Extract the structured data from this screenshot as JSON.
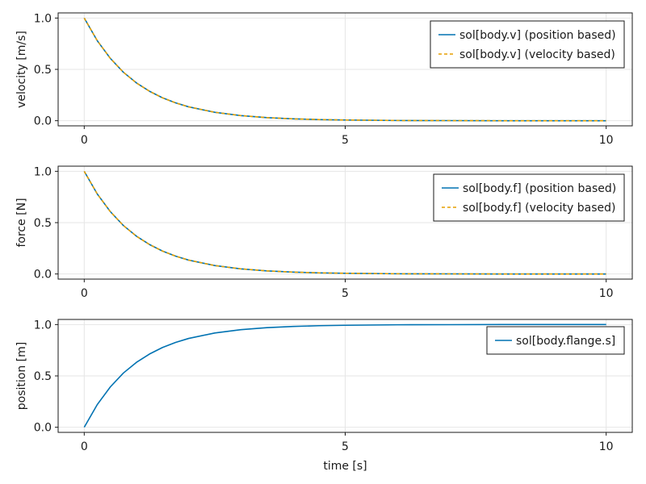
{
  "chart_data": [
    {
      "type": "line",
      "ylabel": "velocity [m/s]",
      "xlabel": "",
      "xlim": [
        -0.5,
        10.5
      ],
      "ylim": [
        -0.05,
        1.05
      ],
      "xticks": [
        "0",
        "5",
        "10"
      ],
      "yticks": [
        "0.0",
        "0.5",
        "1.0"
      ],
      "grid": true,
      "legend_position": "top-right",
      "series": [
        {
          "name": "sol[body.v] (position based)",
          "color": "#0072b2",
          "style": "solid",
          "x": [
            0,
            0.25,
            0.5,
            0.75,
            1,
            1.25,
            1.5,
            1.75,
            2,
            2.5,
            3,
            3.5,
            4,
            4.5,
            5,
            6,
            7,
            8,
            9,
            10
          ],
          "y": [
            1.0,
            0.779,
            0.607,
            0.472,
            0.368,
            0.287,
            0.223,
            0.174,
            0.135,
            0.082,
            0.05,
            0.03,
            0.018,
            0.011,
            0.007,
            0.002,
            0.001,
            0.0,
            0.0,
            0.0
          ]
        },
        {
          "name": "sol[body.v] (velocity based)",
          "color": "#e69f00",
          "style": "dashed",
          "x": [
            0,
            0.25,
            0.5,
            0.75,
            1,
            1.25,
            1.5,
            1.75,
            2,
            2.5,
            3,
            3.5,
            4,
            4.5,
            5,
            6,
            7,
            8,
            9,
            10
          ],
          "y": [
            1.0,
            0.779,
            0.607,
            0.472,
            0.368,
            0.287,
            0.223,
            0.174,
            0.135,
            0.082,
            0.05,
            0.03,
            0.018,
            0.011,
            0.007,
            0.002,
            0.001,
            0.0,
            0.0,
            0.0
          ]
        }
      ]
    },
    {
      "type": "line",
      "ylabel": "force [N]",
      "xlabel": "",
      "xlim": [
        -0.5,
        10.5
      ],
      "ylim": [
        -0.05,
        1.05
      ],
      "xticks": [
        "0",
        "5",
        "10"
      ],
      "yticks": [
        "0.0",
        "0.5",
        "1.0"
      ],
      "grid": true,
      "legend_position": "top-right",
      "series": [
        {
          "name": "sol[body.f] (position based)",
          "color": "#0072b2",
          "style": "solid",
          "x": [
            0,
            0.25,
            0.5,
            0.75,
            1,
            1.25,
            1.5,
            1.75,
            2,
            2.5,
            3,
            3.5,
            4,
            4.5,
            5,
            6,
            7,
            8,
            9,
            10
          ],
          "y": [
            1.0,
            0.779,
            0.607,
            0.472,
            0.368,
            0.287,
            0.223,
            0.174,
            0.135,
            0.082,
            0.05,
            0.03,
            0.018,
            0.011,
            0.007,
            0.002,
            0.001,
            0.0,
            0.0,
            0.0
          ]
        },
        {
          "name": "sol[body.f] (velocity based)",
          "color": "#e69f00",
          "style": "dashed",
          "x": [
            0,
            0.25,
            0.5,
            0.75,
            1,
            1.25,
            1.5,
            1.75,
            2,
            2.5,
            3,
            3.5,
            4,
            4.5,
            5,
            6,
            7,
            8,
            9,
            10
          ],
          "y": [
            1.0,
            0.779,
            0.607,
            0.472,
            0.368,
            0.287,
            0.223,
            0.174,
            0.135,
            0.082,
            0.05,
            0.03,
            0.018,
            0.011,
            0.007,
            0.002,
            0.001,
            0.0,
            0.0,
            0.0
          ]
        }
      ]
    },
    {
      "type": "line",
      "ylabel": "position [m]",
      "xlabel": "time [s]",
      "xlim": [
        -0.5,
        10.5
      ],
      "ylim": [
        -0.05,
        1.05
      ],
      "xticks": [
        "0",
        "5",
        "10"
      ],
      "yticks": [
        "0.0",
        "0.5",
        "1.0"
      ],
      "grid": true,
      "legend_position": "top-right",
      "series": [
        {
          "name": "sol[body.flange.s]",
          "color": "#0072b2",
          "style": "solid",
          "x": [
            0,
            0.25,
            0.5,
            0.75,
            1,
            1.25,
            1.5,
            1.75,
            2,
            2.5,
            3,
            3.5,
            4,
            4.5,
            5,
            6,
            7,
            8,
            9,
            10
          ],
          "y": [
            0.0,
            0.221,
            0.393,
            0.528,
            0.632,
            0.713,
            0.777,
            0.826,
            0.865,
            0.918,
            0.95,
            0.97,
            0.982,
            0.989,
            0.993,
            0.998,
            0.999,
            1.0,
            1.0,
            1.0
          ]
        }
      ]
    }
  ]
}
